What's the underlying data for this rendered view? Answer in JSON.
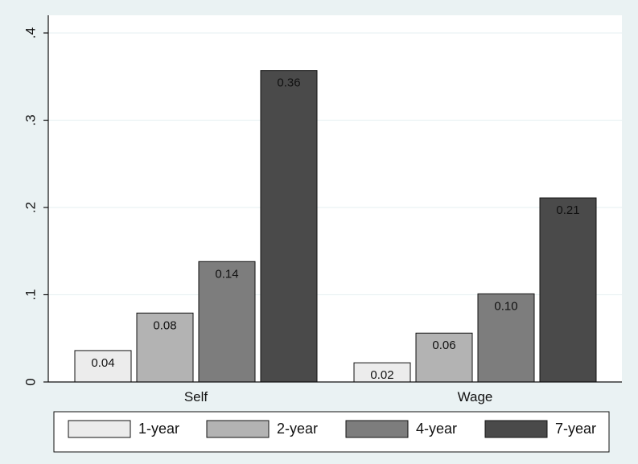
{
  "chart_data": {
    "type": "bar",
    "categories": [
      "Self",
      "Wage"
    ],
    "series": [
      {
        "name": "1-year",
        "values": [
          0.036,
          0.022
        ],
        "labels": [
          "0.04",
          "0.02"
        ],
        "color": "#ececec"
      },
      {
        "name": "2-year",
        "values": [
          0.079,
          0.056
        ],
        "labels": [
          "0.08",
          "0.06"
        ],
        "color": "#b3b3b3"
      },
      {
        "name": "4-year",
        "values": [
          0.138,
          0.101
        ],
        "labels": [
          "0.14",
          "0.10"
        ],
        "color": "#7d7d7d"
      },
      {
        "name": "7-year",
        "values": [
          0.357,
          0.211
        ],
        "labels": [
          "0.36",
          "0.21"
        ],
        "color": "#4a4a4a"
      }
    ],
    "yticks": [
      {
        "value": 0,
        "label": "0"
      },
      {
        "value": 0.1,
        "label": ".1"
      },
      {
        "value": 0.2,
        "label": ".2"
      },
      {
        "value": 0.3,
        "label": ".3"
      },
      {
        "value": 0.4,
        "label": ".4"
      }
    ],
    "ylim": [
      0,
      0.4
    ],
    "title": "",
    "xlabel": "",
    "ylabel": "",
    "grid": true,
    "legend_position": "bottom",
    "colors": {
      "background": "#eaf2f3",
      "plot_background": "#ffffff",
      "grid": "#eaf2f3",
      "axis": "#111111"
    }
  }
}
